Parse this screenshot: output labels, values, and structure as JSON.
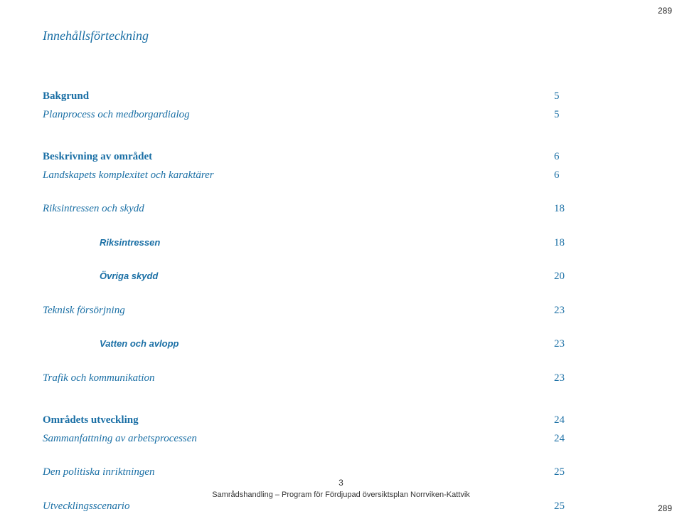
{
  "cornerTop": "289",
  "cornerBottom": "289",
  "title": "Innehållsförteckning",
  "entries": [
    {
      "type": "big-gap"
    },
    {
      "type": "row",
      "class": "section-heading",
      "label": "Bakgrund",
      "page": "5"
    },
    {
      "type": "row",
      "class": "italic",
      "label": "Planprocess och medborgardialog",
      "page": "5"
    },
    {
      "type": "big-gap"
    },
    {
      "type": "row",
      "class": "section-heading",
      "label": "Beskrivning av området",
      "page": "6"
    },
    {
      "type": "row",
      "class": "italic",
      "label": "Landskapets komplexitet och karaktärer",
      "page": "6"
    },
    {
      "type": "group-gap"
    },
    {
      "type": "row",
      "class": "italic",
      "label": "Riksintressen och skydd",
      "page": "18"
    },
    {
      "type": "group-gap"
    },
    {
      "type": "row",
      "class": "sub-bold-italic",
      "label": "Riksintressen",
      "page": "18"
    },
    {
      "type": "group-gap"
    },
    {
      "type": "row",
      "class": "sub-bold-italic",
      "label": "Övriga skydd",
      "page": "20"
    },
    {
      "type": "group-gap"
    },
    {
      "type": "row",
      "class": "italic",
      "label": "Teknisk försörjning",
      "page": "23"
    },
    {
      "type": "group-gap"
    },
    {
      "type": "row",
      "class": "sub-bold-italic",
      "label": "Vatten och avlopp",
      "page": "23"
    },
    {
      "type": "group-gap"
    },
    {
      "type": "row",
      "class": "italic",
      "label": "Trafik och kommunikation",
      "page": "23"
    },
    {
      "type": "big-gap"
    },
    {
      "type": "row",
      "class": "section-heading",
      "label": "Områdets utveckling",
      "page": "24"
    },
    {
      "type": "row",
      "class": "italic",
      "label": "Sammanfattning av arbetsprocessen",
      "page": "24"
    },
    {
      "type": "group-gap"
    },
    {
      "type": "row",
      "class": "italic",
      "label": "Den politiska inriktningen",
      "page": "25"
    },
    {
      "type": "group-gap"
    },
    {
      "type": "row",
      "class": "italic",
      "label": "Utvecklingsscenario",
      "page": "25"
    }
  ],
  "footer": {
    "pageNumber": "3",
    "text": "Samrådshandling – Program för Fördjupad översiktsplan Norrviken-Kattvik"
  }
}
